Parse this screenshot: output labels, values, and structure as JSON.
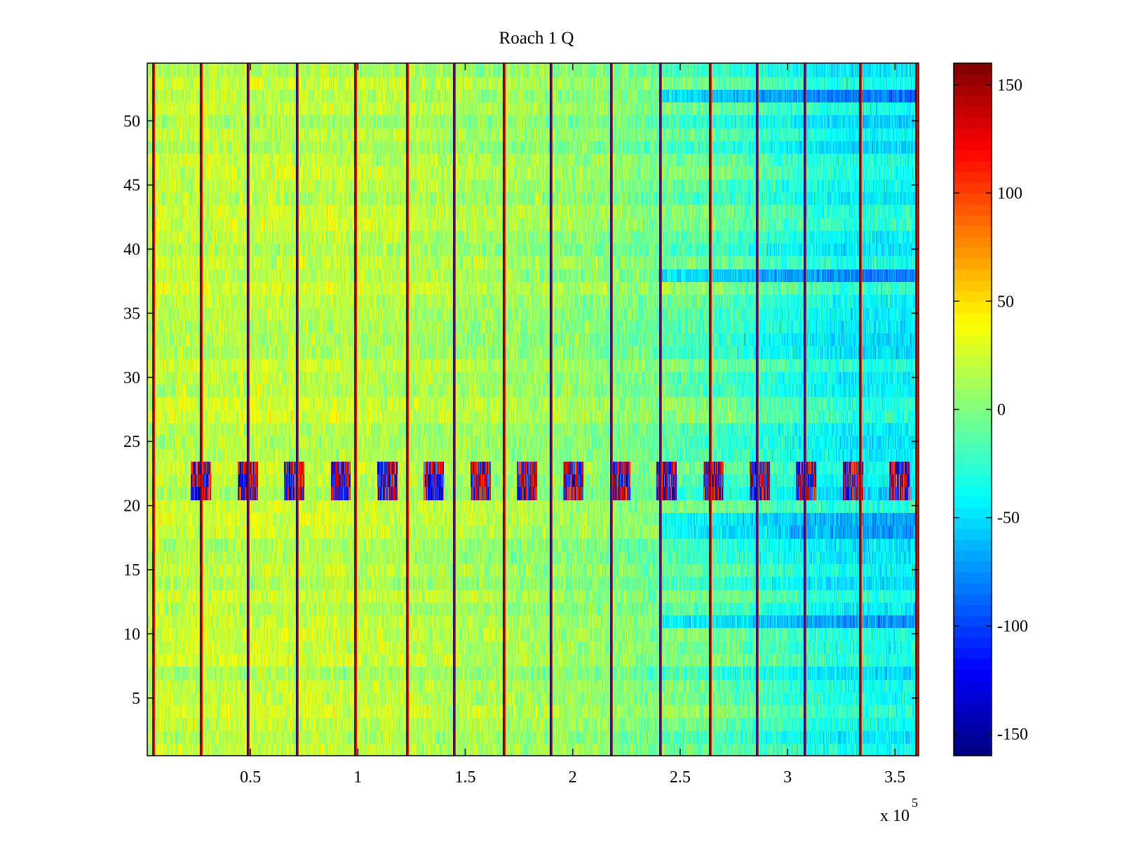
{
  "chart_data": {
    "type": "heatmap",
    "title": "Roach 1 Q",
    "xlabel": "",
    "ylabel": "",
    "x_multiplier_label": "x 10",
    "x_multiplier_exponent": "5",
    "xlim": [
      0.02,
      3.61
    ],
    "ylim": [
      0.5,
      54.5
    ],
    "rows": 54,
    "x_ticks": [
      {
        "value": 0.5,
        "label": "0.5"
      },
      {
        "value": 1,
        "label": "1"
      },
      {
        "value": 1.5,
        "label": "1.5"
      },
      {
        "value": 2,
        "label": "2"
      },
      {
        "value": 2.5,
        "label": "2.5"
      },
      {
        "value": 3,
        "label": "3"
      },
      {
        "value": 3.5,
        "label": "3.5"
      }
    ],
    "y_ticks": [
      {
        "value": 5,
        "label": "5"
      },
      {
        "value": 10,
        "label": "10"
      },
      {
        "value": 15,
        "label": "15"
      },
      {
        "value": 20,
        "label": "20"
      },
      {
        "value": 25,
        "label": "25"
      },
      {
        "value": 30,
        "label": "30"
      },
      {
        "value": 35,
        "label": "35"
      },
      {
        "value": 40,
        "label": "40"
      },
      {
        "value": 45,
        "label": "45"
      },
      {
        "value": 50,
        "label": "50"
      }
    ],
    "colorbar": {
      "colormap": "jet",
      "range": [
        -160,
        160
      ],
      "ticks": [
        {
          "value": 150,
          "label": "150"
        },
        {
          "value": 100,
          "label": "100"
        },
        {
          "value": 50,
          "label": "50"
        },
        {
          "value": 0,
          "label": "0"
        },
        {
          "value": -50,
          "label": "-50"
        },
        {
          "value": -100,
          "label": "-100"
        },
        {
          "value": -150,
          "label": "-150"
        }
      ]
    },
    "vertical_stripes_x": [
      0.05,
      0.27,
      0.49,
      0.72,
      0.99,
      1.23,
      1.45,
      1.68,
      1.9,
      2.18,
      2.41,
      2.64,
      2.86,
      3.08,
      3.34,
      3.6
    ],
    "noisy_band_rows": [
      21,
      23
    ],
    "approx_mean_level_by_region": [
      {
        "x_from": 0.02,
        "x_to": 1.8,
        "rows_from": 1,
        "rows_to": 54,
        "level": 20
      },
      {
        "x_from": 1.8,
        "x_to": 2.4,
        "rows_from": 1,
        "rows_to": 54,
        "level": 5
      },
      {
        "x_from": 2.4,
        "x_to": 3.0,
        "rows_from": 1,
        "rows_to": 54,
        "level": -15
      },
      {
        "x_from": 3.0,
        "x_to": 3.61,
        "rows_from": 1,
        "rows_to": 54,
        "level": -40
      }
    ]
  }
}
